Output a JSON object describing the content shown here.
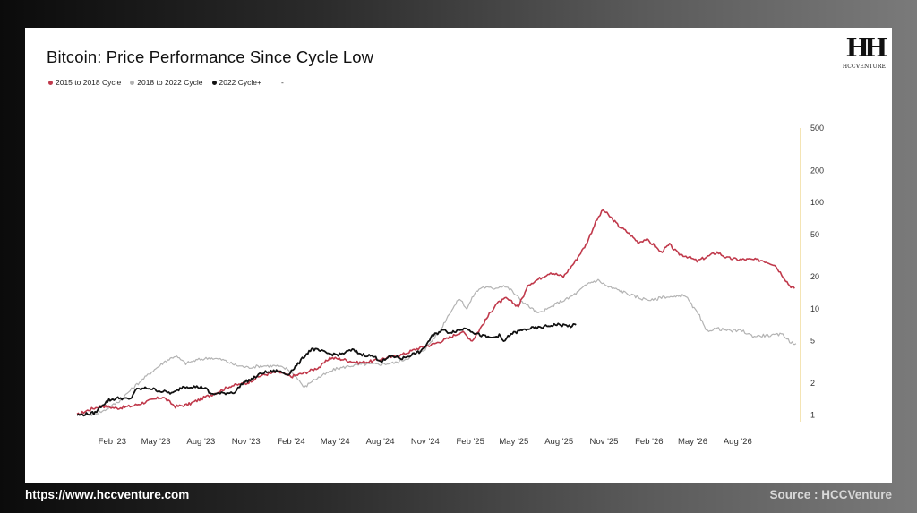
{
  "footer": {
    "website": "https://www.hccventure.com",
    "source": "Source : HCCVenture"
  },
  "logo": {
    "mark": "HH",
    "text": "HCCVENTURE"
  },
  "colors": {
    "cycle_2015": "#c0394b",
    "cycle_2018": "#b3b3b3",
    "cycle_2022": "#111111",
    "axis_line": "#e8c96a"
  },
  "chart_data": {
    "type": "line",
    "title": "Bitcoin: Price Performance Since Cycle Low",
    "legend_placement": "top-left",
    "legend": [
      "2015 to 2018 Cycle",
      "2018 to 2022 Cycle",
      "2022 Cycle+",
      "-"
    ],
    "x_ticks": [
      "Feb '23",
      "May '23",
      "Aug '23",
      "Nov '23",
      "Feb '24",
      "May '24",
      "Aug '24",
      "Nov '24",
      "Feb '25",
      "May '25",
      "Aug '25",
      "Nov '25",
      "Feb '26",
      "May '26",
      "Aug '26"
    ],
    "xlim": [
      "2022-11-21",
      "2026-11-30"
    ],
    "y_scale": "log",
    "y_ticks": [
      1,
      2,
      5,
      10,
      20,
      50,
      100,
      200,
      500
    ],
    "ylim": [
      0.9,
      520
    ],
    "grid": false,
    "series": [
      {
        "name": "2015 to 2018 Cycle",
        "points": [
          [
            "2022-11-21",
            1.0
          ],
          [
            "2022-12-15",
            1.12
          ],
          [
            "2023-01-10",
            1.22
          ],
          [
            "2023-02-10",
            1.16
          ],
          [
            "2023-03-15",
            1.22
          ],
          [
            "2023-04-15",
            1.35
          ],
          [
            "2023-05-15",
            1.48
          ],
          [
            "2023-06-10",
            1.2
          ],
          [
            "2023-07-05",
            1.25
          ],
          [
            "2023-08-01",
            1.42
          ],
          [
            "2023-09-01",
            1.62
          ],
          [
            "2023-10-01",
            1.88
          ],
          [
            "2023-11-01",
            1.98
          ],
          [
            "2023-12-01",
            2.35
          ],
          [
            "2024-01-05",
            2.55
          ],
          [
            "2024-02-01",
            2.3
          ],
          [
            "2024-03-01",
            2.5
          ],
          [
            "2024-04-01",
            2.85
          ],
          [
            "2024-04-20",
            3.45
          ],
          [
            "2024-05-15",
            3.35
          ],
          [
            "2024-06-15",
            3.1
          ],
          [
            "2024-07-15",
            3.2
          ],
          [
            "2024-08-15",
            3.45
          ],
          [
            "2024-09-15",
            3.7
          ],
          [
            "2024-10-15",
            4.2
          ],
          [
            "2024-11-15",
            4.6
          ],
          [
            "2024-12-15",
            5.2
          ],
          [
            "2025-01-15",
            6.1
          ],
          [
            "2025-02-05",
            5.0
          ],
          [
            "2025-03-01",
            7.4
          ],
          [
            "2025-03-25",
            11.0
          ],
          [
            "2025-04-15",
            12.5
          ],
          [
            "2025-05-10",
            10.5
          ],
          [
            "2025-06-01",
            17.0
          ],
          [
            "2025-06-25",
            19.5
          ],
          [
            "2025-07-15",
            22.0
          ],
          [
            "2025-08-10",
            20.0
          ],
          [
            "2025-09-01",
            27.0
          ],
          [
            "2025-09-25",
            40.0
          ],
          [
            "2025-10-15",
            65.0
          ],
          [
            "2025-10-30",
            85.0
          ],
          [
            "2025-11-15",
            72.0
          ],
          [
            "2025-12-01",
            60.0
          ],
          [
            "2025-12-20",
            52.0
          ],
          [
            "2026-01-10",
            42.0
          ],
          [
            "2026-01-25",
            45.0
          ],
          [
            "2026-02-10",
            40.0
          ],
          [
            "2026-02-25",
            34.0
          ],
          [
            "2026-03-15",
            40.0
          ],
          [
            "2026-04-01",
            33.0
          ],
          [
            "2026-04-20",
            31.0
          ],
          [
            "2026-05-10",
            28.0
          ],
          [
            "2026-06-01",
            31.0
          ],
          [
            "2026-06-20",
            34.0
          ],
          [
            "2026-07-10",
            30.0
          ],
          [
            "2026-08-01",
            29.0
          ],
          [
            "2026-08-25",
            29.0
          ],
          [
            "2026-09-20",
            28.5
          ],
          [
            "2026-10-15",
            26.0
          ],
          [
            "2026-10-30",
            21.0
          ],
          [
            "2026-11-15",
            16.5
          ],
          [
            "2026-11-25",
            15.5
          ]
        ]
      },
      {
        "name": "2018 to 2022 Cycle",
        "points": [
          [
            "2022-12-20",
            1.0
          ],
          [
            "2023-01-15",
            1.1
          ],
          [
            "2023-02-15",
            1.35
          ],
          [
            "2023-03-15",
            1.8
          ],
          [
            "2023-04-20",
            2.5
          ],
          [
            "2023-05-20",
            3.2
          ],
          [
            "2023-06-10",
            3.6
          ],
          [
            "2023-07-01",
            3.05
          ],
          [
            "2023-07-25",
            3.3
          ],
          [
            "2023-08-20",
            3.45
          ],
          [
            "2023-09-15",
            3.3
          ],
          [
            "2023-10-10",
            2.95
          ],
          [
            "2023-11-05",
            2.8
          ],
          [
            "2023-12-01",
            2.9
          ],
          [
            "2024-01-01",
            2.9
          ],
          [
            "2024-01-25",
            2.7
          ],
          [
            "2024-02-15",
            2.2
          ],
          [
            "2024-02-28",
            1.8
          ],
          [
            "2024-03-15",
            2.1
          ],
          [
            "2024-04-05",
            2.35
          ],
          [
            "2024-05-01",
            2.7
          ],
          [
            "2024-06-01",
            2.9
          ],
          [
            "2024-07-01",
            3.0
          ],
          [
            "2024-08-01",
            3.0
          ],
          [
            "2024-09-01",
            3.1
          ],
          [
            "2024-10-01",
            3.5
          ],
          [
            "2024-11-01",
            4.2
          ],
          [
            "2024-12-01",
            6.2
          ],
          [
            "2024-12-20",
            9.0
          ],
          [
            "2025-01-10",
            12.5
          ],
          [
            "2025-01-25",
            10.0
          ],
          [
            "2025-02-10",
            14.0
          ],
          [
            "2025-02-25",
            16.0
          ],
          [
            "2025-03-20",
            15.5
          ],
          [
            "2025-04-10",
            16.5
          ],
          [
            "2025-04-25",
            15.0
          ],
          [
            "2025-05-15",
            12.0
          ],
          [
            "2025-06-01",
            10.5
          ],
          [
            "2025-06-20",
            9.0
          ],
          [
            "2025-07-10",
            10.0
          ],
          [
            "2025-08-01",
            11.5
          ],
          [
            "2025-08-20",
            12.5
          ],
          [
            "2025-09-10",
            14.5
          ],
          [
            "2025-10-01",
            17.5
          ],
          [
            "2025-10-20",
            18.5
          ],
          [
            "2025-11-10",
            16.0
          ],
          [
            "2025-12-01",
            15.0
          ],
          [
            "2025-12-25",
            13.5
          ],
          [
            "2026-01-15",
            12.5
          ],
          [
            "2026-02-10",
            12.0
          ],
          [
            "2026-03-01",
            13.0
          ],
          [
            "2026-03-25",
            12.8
          ],
          [
            "2026-04-15",
            13.5
          ],
          [
            "2026-05-01",
            10.5
          ],
          [
            "2026-05-15",
            8.5
          ],
          [
            "2026-05-28",
            6.2
          ],
          [
            "2026-06-20",
            6.5
          ],
          [
            "2026-07-15",
            6.2
          ],
          [
            "2026-08-10",
            6.2
          ],
          [
            "2026-09-01",
            5.5
          ],
          [
            "2026-09-25",
            5.6
          ],
          [
            "2026-10-15",
            5.6
          ],
          [
            "2026-11-01",
            5.8
          ],
          [
            "2026-11-15",
            4.9
          ],
          [
            "2026-11-28",
            4.7
          ]
        ]
      },
      {
        "name": "2022 Cycle+",
        "points": [
          [
            "2022-11-21",
            1.0
          ],
          [
            "2022-12-10",
            1.02
          ],
          [
            "2022-12-28",
            1.05
          ],
          [
            "2023-01-12",
            1.25
          ],
          [
            "2023-01-25",
            1.38
          ],
          [
            "2023-02-15",
            1.45
          ],
          [
            "2023-03-10",
            1.4
          ],
          [
            "2023-03-20",
            1.72
          ],
          [
            "2023-04-15",
            1.8
          ],
          [
            "2023-05-10",
            1.68
          ],
          [
            "2023-06-05",
            1.6
          ],
          [
            "2023-06-25",
            1.85
          ],
          [
            "2023-07-15",
            1.85
          ],
          [
            "2023-08-10",
            1.8
          ],
          [
            "2023-08-20",
            1.58
          ],
          [
            "2023-09-15",
            1.6
          ],
          [
            "2023-10-10",
            1.65
          ],
          [
            "2023-10-25",
            2.0
          ],
          [
            "2023-11-15",
            2.2
          ],
          [
            "2023-12-05",
            2.5
          ],
          [
            "2024-01-05",
            2.6
          ],
          [
            "2024-01-25",
            2.4
          ],
          [
            "2024-02-15",
            3.0
          ],
          [
            "2024-03-01",
            3.65
          ],
          [
            "2024-03-14",
            4.2
          ],
          [
            "2024-04-01",
            4.0
          ],
          [
            "2024-04-20",
            3.75
          ],
          [
            "2024-05-10",
            3.7
          ],
          [
            "2024-06-05",
            4.1
          ],
          [
            "2024-06-25",
            3.7
          ],
          [
            "2024-07-15",
            3.6
          ],
          [
            "2024-08-05",
            3.2
          ],
          [
            "2024-08-25",
            3.6
          ],
          [
            "2024-09-15",
            3.4
          ],
          [
            "2024-10-01",
            3.65
          ],
          [
            "2024-10-25",
            4.0
          ],
          [
            "2024-11-15",
            5.5
          ],
          [
            "2024-12-05",
            6.3
          ],
          [
            "2024-12-20",
            6.0
          ],
          [
            "2025-01-10",
            6.3
          ],
          [
            "2025-01-25",
            6.6
          ],
          [
            "2025-02-10",
            5.9
          ],
          [
            "2025-03-01",
            5.5
          ],
          [
            "2025-03-15",
            5.3
          ],
          [
            "2025-04-01",
            5.6
          ],
          [
            "2025-04-10",
            4.9
          ],
          [
            "2025-04-25",
            5.8
          ],
          [
            "2025-05-15",
            6.2
          ],
          [
            "2025-06-01",
            6.5
          ],
          [
            "2025-06-20",
            6.6
          ],
          [
            "2025-07-05",
            6.8
          ],
          [
            "2025-07-25",
            7.1
          ],
          [
            "2025-08-10",
            7.0
          ],
          [
            "2025-08-25",
            6.85
          ],
          [
            "2025-09-05",
            7.05
          ]
        ]
      }
    ]
  }
}
